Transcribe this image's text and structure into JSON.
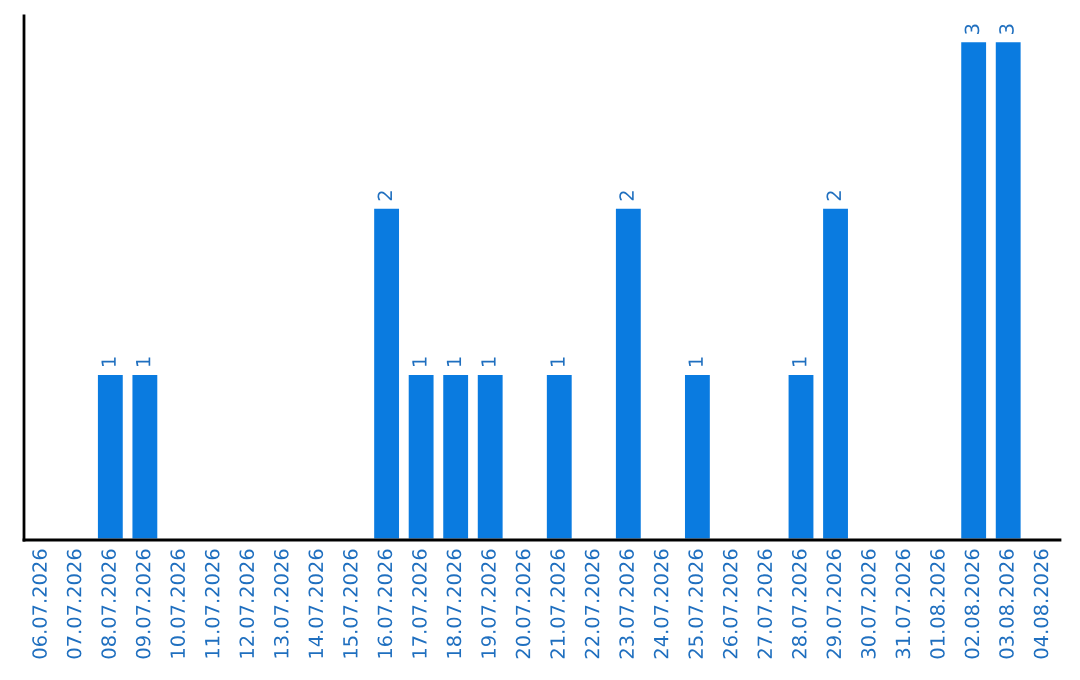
{
  "chart_data": {
    "type": "bar",
    "categories": [
      "06.07.2026",
      "07.07.2026",
      "08.07.2026",
      "09.07.2026",
      "10.07.2026",
      "11.07.2026",
      "12.07.2026",
      "13.07.2026",
      "14.07.2026",
      "15.07.2026",
      "16.07.2026",
      "17.07.2026",
      "18.07.2026",
      "19.07.2026",
      "20.07.2026",
      "21.07.2026",
      "22.07.2026",
      "23.07.2026",
      "24.07.2026",
      "25.07.2026",
      "26.07.2026",
      "27.07.2026",
      "28.07.2026",
      "29.07.2026",
      "30.07.2026",
      "31.07.2026",
      "01.08.2026",
      "02.08.2026",
      "03.08.2026",
      "04.08.2026"
    ],
    "values": [
      null,
      null,
      1,
      1,
      null,
      null,
      null,
      null,
      null,
      null,
      2,
      1,
      1,
      1,
      null,
      1,
      null,
      2,
      null,
      1,
      null,
      null,
      1,
      2,
      null,
      null,
      null,
      3,
      3,
      null
    ],
    "value_labels": [
      null,
      null,
      "1",
      "1",
      null,
      null,
      null,
      null,
      null,
      null,
      "2",
      "1",
      "1",
      "1",
      null,
      "1",
      null,
      "2",
      null,
      "1",
      null,
      null,
      "1",
      "2",
      null,
      null,
      null,
      "3",
      "3",
      null
    ],
    "color": "#0a7be0",
    "tick_labels": "x",
    "grid": false,
    "legend": false
  }
}
